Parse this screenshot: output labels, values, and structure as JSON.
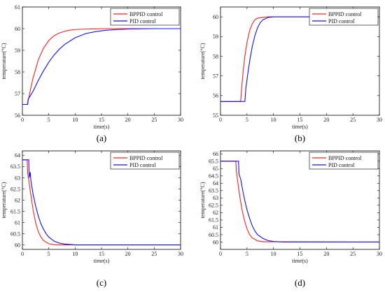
{
  "chart_data": [
    {
      "type": "line",
      "panel_label": "(a)",
      "xlabel": "time(s)",
      "ylabel": "temperature(°C)",
      "xlim": [
        0,
        30
      ],
      "ylim": [
        56,
        61
      ],
      "xticks": [
        0,
        5,
        10,
        15,
        20,
        25,
        30
      ],
      "yticks": [
        56,
        57,
        58,
        59,
        60,
        61
      ],
      "grid": false,
      "legend_position": "top-right",
      "series": [
        {
          "name": "BPPID control",
          "color": "#ff2020",
          "x": [
            0,
            0.9,
            1.0,
            1.5,
            2,
            3,
            4,
            5,
            6,
            7,
            8,
            9,
            10,
            12,
            14,
            16,
            18,
            20,
            25,
            30
          ],
          "y": [
            56.5,
            56.5,
            56.55,
            57.15,
            57.7,
            58.55,
            59.1,
            59.45,
            59.67,
            59.8,
            59.88,
            59.93,
            59.96,
            59.98,
            59.99,
            60.0,
            60.0,
            60.0,
            60.0,
            60.0
          ]
        },
        {
          "name": "PID control",
          "color": "#1010ff",
          "x": [
            0,
            1.0,
            1.1,
            1.5,
            2,
            3,
            4,
            5,
            6,
            7,
            8,
            10,
            12,
            14,
            16,
            18,
            20,
            25,
            30
          ],
          "y": [
            56.5,
            56.5,
            56.75,
            56.9,
            57.1,
            57.6,
            58.05,
            58.45,
            58.78,
            59.05,
            59.27,
            59.58,
            59.77,
            59.87,
            59.93,
            59.96,
            59.98,
            60.0,
            60.0
          ]
        }
      ]
    },
    {
      "type": "line",
      "panel_label": "(b)",
      "xlabel": "time(s)",
      "ylabel": "temperature(°C)",
      "xlim": [
        0,
        30
      ],
      "ylim": [
        55,
        60.5
      ],
      "xticks": [
        0,
        5,
        10,
        15,
        20,
        25,
        30
      ],
      "yticks": [
        55,
        56,
        57,
        58,
        59,
        60
      ],
      "grid": false,
      "legend_position": "top-right",
      "series": [
        {
          "name": "BPPID control",
          "color": "#ff2020",
          "x": [
            0,
            3.8,
            4.0,
            4.3,
            4.6,
            5,
            5.5,
            6,
            6.5,
            7,
            8,
            9,
            10,
            30
          ],
          "y": [
            55.7,
            55.7,
            56.4,
            57.3,
            58.0,
            58.7,
            59.3,
            59.65,
            59.85,
            59.93,
            59.98,
            60.0,
            60.0,
            60.0
          ]
        },
        {
          "name": "PID control",
          "color": "#1010ff",
          "x": [
            0,
            4.6,
            4.8,
            5.2,
            5.6,
            6,
            6.5,
            7,
            7.5,
            8,
            9,
            10,
            30
          ],
          "y": [
            55.7,
            55.7,
            56.4,
            57.2,
            57.9,
            58.5,
            59.05,
            59.45,
            59.7,
            59.85,
            59.97,
            60.0,
            60.0
          ]
        }
      ]
    },
    {
      "type": "line",
      "panel_label": "(c)",
      "xlabel": "time(s)",
      "ylabel": "temperature(°C)",
      "xlim": [
        0,
        30
      ],
      "ylim": [
        59.8,
        64.2
      ],
      "xticks": [
        0,
        5,
        10,
        15,
        20,
        25,
        30
      ],
      "yticks": [
        60,
        60.5,
        61,
        61.5,
        62,
        62.5,
        63,
        63.5,
        64
      ],
      "grid": false,
      "legend_position": "top-right",
      "series": [
        {
          "name": "BPPID control",
          "color": "#ff2020",
          "x": [
            0,
            0.9,
            1.0,
            1.2,
            1.5,
            2,
            2.5,
            3,
            3.5,
            4,
            5,
            6,
            7,
            30
          ],
          "y": [
            63.8,
            63.8,
            63.2,
            62.9,
            62.4,
            61.6,
            61.0,
            60.6,
            60.35,
            60.2,
            60.05,
            60.01,
            60.0,
            60.0
          ]
        },
        {
          "name": "PID control",
          "color": "#1010ff",
          "x": [
            0,
            1.2,
            1.3,
            1.5,
            1.6,
            2,
            2.5,
            3,
            3.5,
            4,
            4.5,
            5,
            6,
            7,
            8,
            10,
            30
          ],
          "y": [
            63.8,
            63.8,
            63.0,
            63.25,
            62.9,
            62.3,
            61.75,
            61.3,
            60.95,
            60.7,
            60.5,
            60.35,
            60.17,
            60.08,
            60.04,
            60.0,
            60.0
          ]
        }
      ]
    },
    {
      "type": "line",
      "panel_label": "(d)",
      "xlabel": "time(s)",
      "ylabel": "temperature(°C)",
      "xlim": [
        0,
        30
      ],
      "ylim": [
        59.5,
        66.2
      ],
      "xticks": [
        0,
        5,
        10,
        15,
        20,
        25,
        30
      ],
      "yticks": [
        60,
        60.5,
        61,
        61.5,
        62,
        62.5,
        63,
        63.5,
        64,
        64.5,
        65,
        65.5,
        66
      ],
      "grid": false,
      "legend_position": "top-right",
      "series": [
        {
          "name": "BPPID control",
          "color": "#ff2020",
          "x": [
            0,
            2.9,
            3.0,
            3.3,
            3.6,
            4,
            4.5,
            5,
            5.5,
            6,
            7,
            8,
            30
          ],
          "y": [
            65.5,
            65.5,
            64.8,
            64.0,
            63.2,
            62.3,
            61.5,
            60.9,
            60.5,
            60.28,
            60.08,
            60.02,
            60.0
          ]
        },
        {
          "name": "PID control",
          "color": "#1010ff",
          "x": [
            0,
            3.4,
            3.5,
            3.8,
            4.2,
            4.6,
            5,
            5.5,
            6,
            6.5,
            7,
            8,
            9,
            10,
            12,
            30
          ],
          "y": [
            65.5,
            65.5,
            64.6,
            64.3,
            63.5,
            62.8,
            62.2,
            61.6,
            61.1,
            60.75,
            60.5,
            60.25,
            60.1,
            60.04,
            60.0,
            60.0
          ]
        }
      ]
    }
  ]
}
